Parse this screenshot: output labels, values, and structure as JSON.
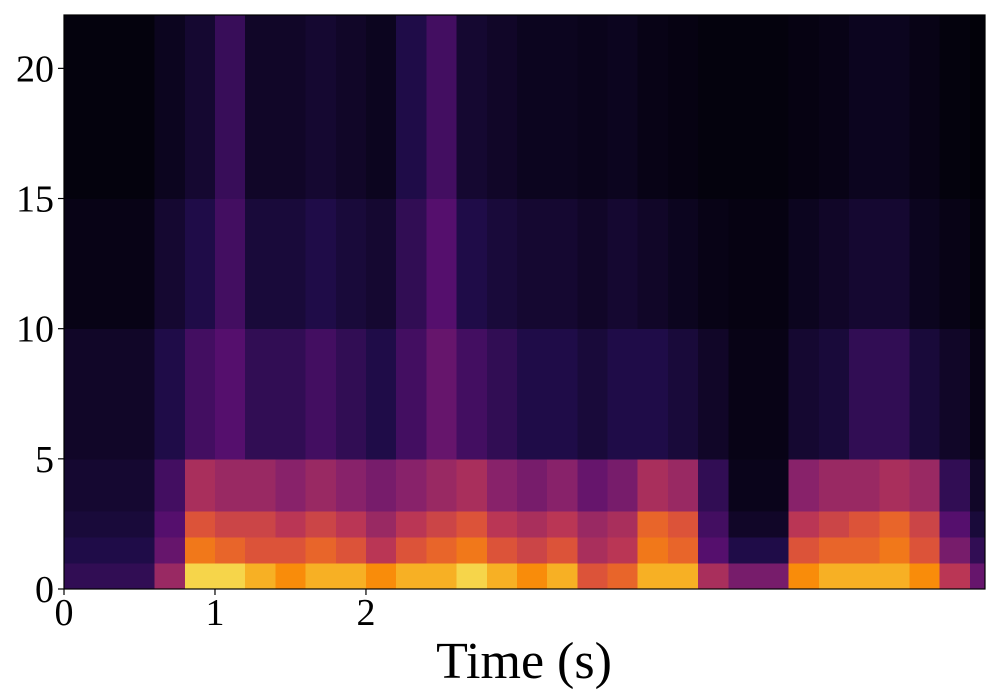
{
  "chart_data": {
    "type": "heatmap",
    "xlabel": "Time (s)",
    "colormap": "inferno",
    "xlim": [
      0,
      6.1
    ],
    "ylim": [
      0,
      22.05
    ],
    "xticks": [
      0,
      1,
      2
    ],
    "yticks": [
      0,
      5,
      10,
      15,
      20
    ],
    "xbins": [
      0,
      0.2,
      0.4,
      0.6,
      0.8,
      1.0,
      1.2,
      1.4,
      1.6,
      1.8,
      2.0,
      2.2,
      2.4,
      2.6,
      2.8,
      3.0,
      3.2,
      3.4,
      3.6,
      3.8,
      4.0,
      4.2,
      4.4,
      4.6,
      4.8,
      5.0,
      5.2,
      5.4,
      5.6,
      5.8,
      6.0,
      6.1
    ],
    "ybins": [
      0,
      1,
      2,
      3,
      5,
      10,
      15,
      22.05
    ],
    "z": [
      [
        0.2,
        0.2,
        0.2,
        0.5,
        0.95,
        0.95,
        0.9,
        0.85,
        0.9,
        0.9,
        0.85,
        0.9,
        0.9,
        0.95,
        0.9,
        0.85,
        0.9,
        0.7,
        0.75,
        0.9,
        0.9,
        0.55,
        0.4,
        0.4,
        0.85,
        0.9,
        0.9,
        0.9,
        0.85,
        0.6,
        0.35
      ],
      [
        0.15,
        0.15,
        0.15,
        0.35,
        0.8,
        0.75,
        0.7,
        0.7,
        0.75,
        0.7,
        0.6,
        0.7,
        0.75,
        0.8,
        0.7,
        0.65,
        0.7,
        0.55,
        0.6,
        0.8,
        0.75,
        0.3,
        0.15,
        0.15,
        0.7,
        0.75,
        0.75,
        0.8,
        0.7,
        0.4,
        0.2
      ],
      [
        0.12,
        0.12,
        0.12,
        0.3,
        0.7,
        0.65,
        0.65,
        0.6,
        0.65,
        0.6,
        0.5,
        0.6,
        0.65,
        0.7,
        0.6,
        0.55,
        0.6,
        0.5,
        0.55,
        0.75,
        0.7,
        0.25,
        0.08,
        0.08,
        0.6,
        0.65,
        0.7,
        0.75,
        0.65,
        0.3,
        0.12
      ],
      [
        0.1,
        0.1,
        0.1,
        0.25,
        0.55,
        0.5,
        0.5,
        0.45,
        0.5,
        0.45,
        0.4,
        0.45,
        0.5,
        0.55,
        0.45,
        0.4,
        0.45,
        0.35,
        0.4,
        0.55,
        0.5,
        0.2,
        0.05,
        0.05,
        0.45,
        0.5,
        0.5,
        0.55,
        0.5,
        0.2,
        0.08
      ],
      [
        0.08,
        0.08,
        0.08,
        0.15,
        0.25,
        0.3,
        0.2,
        0.2,
        0.25,
        0.2,
        0.15,
        0.25,
        0.35,
        0.25,
        0.2,
        0.15,
        0.15,
        0.12,
        0.15,
        0.15,
        0.12,
        0.08,
        0.04,
        0.04,
        0.1,
        0.12,
        0.2,
        0.2,
        0.12,
        0.08,
        0.04
      ],
      [
        0.04,
        0.04,
        0.04,
        0.1,
        0.15,
        0.25,
        0.12,
        0.12,
        0.15,
        0.12,
        0.1,
        0.2,
        0.3,
        0.15,
        0.12,
        0.1,
        0.1,
        0.08,
        0.1,
        0.08,
        0.06,
        0.04,
        0.03,
        0.03,
        0.06,
        0.08,
        0.1,
        0.1,
        0.06,
        0.04,
        0.02
      ],
      [
        0.02,
        0.02,
        0.02,
        0.06,
        0.1,
        0.22,
        0.08,
        0.08,
        0.1,
        0.08,
        0.06,
        0.15,
        0.25,
        0.1,
        0.08,
        0.06,
        0.06,
        0.05,
        0.06,
        0.04,
        0.03,
        0.02,
        0.02,
        0.02,
        0.03,
        0.04,
        0.06,
        0.06,
        0.04,
        0.02,
        0.01
      ]
    ]
  }
}
